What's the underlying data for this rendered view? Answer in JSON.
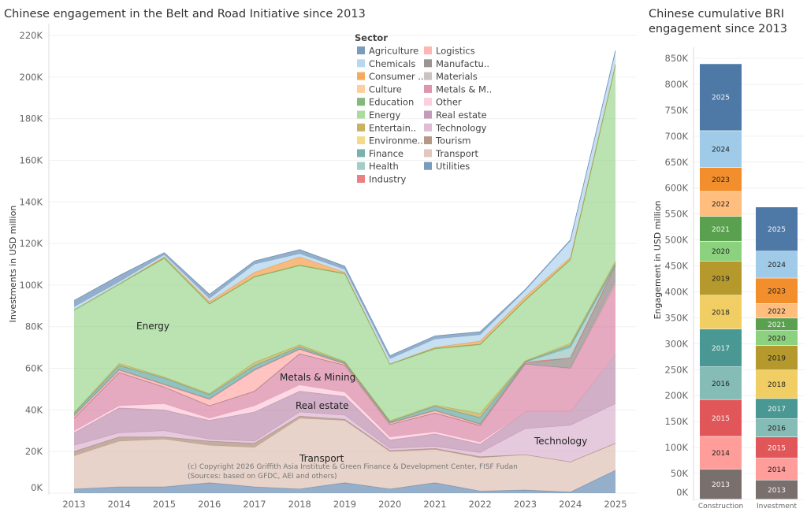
{
  "left_title": "Chinese engagement in the Belt and Road Initiative since 2013",
  "right_title_line1": "Chinese cumulative BRI",
  "right_title_line2": "engagement since 2013",
  "copyright_line1": "(c) Copyright 2026 Griffith Asia Institute & Green Finance & Development Center, FISF Fudan",
  "copyright_line2": "(Sources: based on GFDC, AEI and others)",
  "chart_data": [
    {
      "type": "area",
      "stacked": true,
      "title": "Chinese engagement in the Belt and Road Initiative since 2013",
      "ylabel": "Investments in USD million",
      "xlabel": "",
      "ylim": [
        0,
        220000
      ],
      "y_ticks": [
        "0K",
        "20K",
        "40K",
        "60K",
        "80K",
        "100K",
        "120K",
        "140K",
        "160K",
        "180K",
        "200K",
        "220K"
      ],
      "x": [
        "2013",
        "2014",
        "2015",
        "2016",
        "2017",
        "2018",
        "2019",
        "2020",
        "2021",
        "2022",
        "2023",
        "2024",
        "2025"
      ],
      "grid": true,
      "legend_title": "Sector",
      "legend_placement": "top-center",
      "annotations": [
        "Energy",
        "Metals & Mining",
        "Real estate",
        "Transport",
        "Technology"
      ],
      "unit_multiplier_note_values_in": "K",
      "series": [
        {
          "name": "Agriculture",
          "legend": "Agriculture",
          "color": "#4e79a7",
          "values": [
            3,
            3,
            1,
            2,
            1.5,
            2,
            1.5,
            1.5,
            1.5,
            1.5,
            0.5,
            0.5,
            0.5
          ]
        },
        {
          "name": "Chemicals",
          "legend": "Chemicals",
          "color": "#a0cbe8",
          "values": [
            1.5,
            1,
            1,
            1.5,
            4,
            1.5,
            1.5,
            2.5,
            4,
            3,
            3,
            8,
            6
          ]
        },
        {
          "name": "Consumer",
          "legend": "Consumer ..",
          "color": "#f28e2b",
          "values": [
            0,
            0,
            0.5,
            1,
            2,
            4,
            0.5,
            0,
            0.5,
            1.5,
            1.5,
            1,
            0.5
          ]
        },
        {
          "name": "Culture",
          "legend": "Culture",
          "color": "#ffbe7d",
          "values": [
            0,
            0,
            0,
            0,
            0,
            0,
            0,
            0,
            0,
            0,
            0,
            0,
            0
          ]
        },
        {
          "name": "Education",
          "legend": "Education",
          "color": "#59a14f",
          "values": [
            0.3,
            0.3,
            0.3,
            0.3,
            0.3,
            0.3,
            0.3,
            0.3,
            0.3,
            0.3,
            0.3,
            0.3,
            0.3
          ]
        },
        {
          "name": "Energy",
          "legend": "Energy",
          "color": "#8cd17d",
          "values": [
            49,
            38,
            57,
            43,
            41,
            38,
            42,
            27,
            27,
            33,
            29,
            40,
            94
          ]
        },
        {
          "name": "Entertainment",
          "legend": "Entertain..",
          "color": "#b6992d",
          "values": [
            0.5,
            1,
            0.5,
            0.5,
            1.5,
            1,
            0.5,
            0.5,
            0.5,
            2,
            0.3,
            1,
            1
          ]
        },
        {
          "name": "Environment",
          "legend": "Environme..",
          "color": "#f1ce63",
          "values": [
            0,
            0,
            0,
            0,
            0,
            0,
            0,
            0,
            0,
            0,
            0,
            0,
            0
          ]
        },
        {
          "name": "Finance",
          "legend": "Finance",
          "color": "#499894",
          "values": [
            1,
            2,
            3,
            2,
            2,
            1,
            0.5,
            0.5,
            2,
            3,
            0.3,
            1,
            1
          ]
        },
        {
          "name": "Health",
          "legend": "Health",
          "color": "#86bcb6",
          "values": [
            0,
            0,
            0,
            0,
            0,
            0,
            0,
            0,
            0,
            0,
            0,
            5,
            0
          ]
        },
        {
          "name": "Industry",
          "legend": "Industry",
          "color": "#e15759",
          "values": [
            0.3,
            0.3,
            0.3,
            0.3,
            0.3,
            0.3,
            0.3,
            0.3,
            0.3,
            0.3,
            0,
            0,
            0
          ]
        },
        {
          "name": "Logistics",
          "legend": "Logistics",
          "color": "#ff9d9a",
          "values": [
            1,
            1,
            1,
            3,
            10,
            2,
            0.5,
            0.5,
            1,
            0.5,
            0.5,
            0,
            0
          ]
        },
        {
          "name": "Manufacturing",
          "legend": "Manufactu..",
          "color": "#79706e",
          "values": [
            0,
            0,
            0,
            0,
            0,
            0,
            0,
            0,
            0,
            0,
            0.5,
            5,
            8
          ]
        },
        {
          "name": "Materials",
          "legend": "Materials",
          "color": "#bab0ac",
          "values": [
            0,
            0,
            0,
            0,
            0,
            0,
            0,
            0,
            0,
            0,
            0,
            0,
            1
          ]
        },
        {
          "name": "Metals & Mining",
          "legend": "Metals & M..",
          "color": "#d37295",
          "values": [
            6,
            16,
            8,
            6,
            7,
            15,
            13,
            6,
            9,
            8,
            23,
            21,
            33
          ]
        },
        {
          "name": "Other",
          "legend": "Other",
          "color": "#fabfd2",
          "values": [
            1,
            1,
            3,
            1,
            3,
            3,
            2,
            1.5,
            1,
            1,
            0,
            0,
            0.5
          ]
        },
        {
          "name": "Real estate",
          "legend": "Real estate",
          "color": "#b07aa1",
          "values": [
            6,
            12,
            10,
            9,
            14,
            10,
            9,
            4,
            6,
            4,
            8,
            6.4,
            24
          ]
        },
        {
          "name": "Technology",
          "legend": "Technology",
          "color": "#d4a6c8",
          "values": [
            3,
            2,
            3,
            1,
            1,
            2,
            2,
            1,
            1,
            2,
            12.5,
            17.6,
            19
          ]
        },
        {
          "name": "Tourism",
          "legend": "Tourism",
          "color": "#9d7660",
          "values": [
            2,
            2,
            1,
            2,
            2,
            1,
            0.5,
            0.5,
            0.5,
            0.5,
            0,
            0,
            0
          ]
        },
        {
          "name": "Transport",
          "legend": "Transport",
          "color": "#d7b5a6",
          "values": [
            16,
            22,
            23,
            18,
            19,
            34,
            30,
            18,
            16,
            16,
            17,
            14.5,
            13
          ]
        },
        {
          "name": "Utilities",
          "legend": "Utilities",
          "color": "#4e79a7",
          "values": [
            2,
            3,
            3,
            5,
            3,
            2,
            5,
            2,
            5,
            1,
            1.5,
            0.5,
            11
          ]
        }
      ]
    },
    {
      "type": "bar",
      "stacked": true,
      "title": "Chinese cumulative BRI engagement since 2013",
      "ylabel": "Engagement in USD million",
      "ylim": [
        0,
        850000
      ],
      "y_ticks": [
        "0K",
        "50K",
        "100K",
        "150K",
        "200K",
        "250K",
        "300K",
        "350K",
        "400K",
        "450K",
        "500K",
        "550K",
        "600K",
        "650K",
        "700K",
        "750K",
        "800K",
        "850K"
      ],
      "categories": [
        "Construction",
        "Investment"
      ],
      "grid": true,
      "segments": [
        "2013",
        "2014",
        "2015",
        "2016",
        "2017",
        "2018",
        "2019",
        "2020",
        "2021",
        "2022",
        "2023",
        "2024",
        "2025"
      ],
      "segment_colors": [
        "#79706e",
        "#ff9d9a",
        "#e15759",
        "#86bcb6",
        "#499894",
        "#f1ce63",
        "#b6992d",
        "#8cd17d",
        "#59a14f",
        "#ffbe7d",
        "#f28e2b",
        "#a0cbe8",
        "#4e79a7"
      ],
      "series": [
        {
          "category": "Construction",
          "values_k": [
            58,
            63,
            71,
            63,
            73,
            65,
            66,
            38,
            48,
            48,
            46,
            71,
            129
          ]
        },
        {
          "category": "Investment",
          "values_k": [
            37,
            42,
            41,
            35,
            39,
            55,
            47,
            29,
            24,
            28,
            49,
            52,
            85
          ]
        }
      ]
    }
  ]
}
